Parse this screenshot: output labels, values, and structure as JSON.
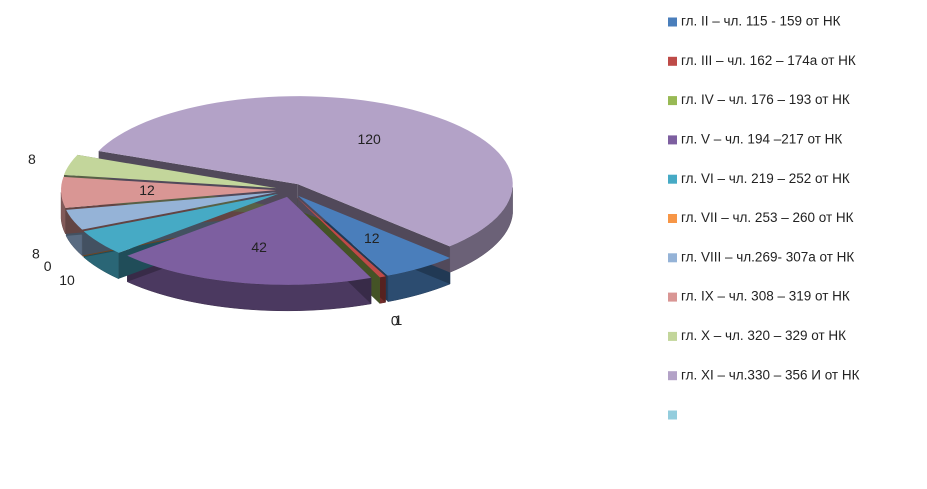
{
  "chart_data": {
    "type": "pie",
    "categories": [
      "гл. II – чл. 115 - 159 от НК",
      "гл. III – чл. 162 – 174а от НК",
      "гл. IV – чл. 176 – 193 от НК",
      "гл. V – чл. 194 –217 от НК",
      "гл. VI – чл. 219 – 252 от НК",
      "гл. VII – чл. 253 – 260 от НК",
      "гл. VIII – чл.269- 307а от НК",
      "гл. IX – чл. 308 – 319 от НК",
      "гл. X – чл. 320 – 329 от НК",
      "гл. XI – чл.330 – 356 И  от НК",
      null
    ],
    "values": [
      12,
      1,
      0,
      42,
      10,
      0,
      8,
      12,
      8,
      120,
      null
    ],
    "colors": [
      "#4a7ebb",
      "#be4b48",
      "#98b954",
      "#7d5fa0",
      "#46aac5",
      "#f79646",
      "#95b3d7",
      "#d99694",
      "#c3d69b",
      "#b3a2c7",
      "#93cddd"
    ],
    "legend": "right"
  }
}
